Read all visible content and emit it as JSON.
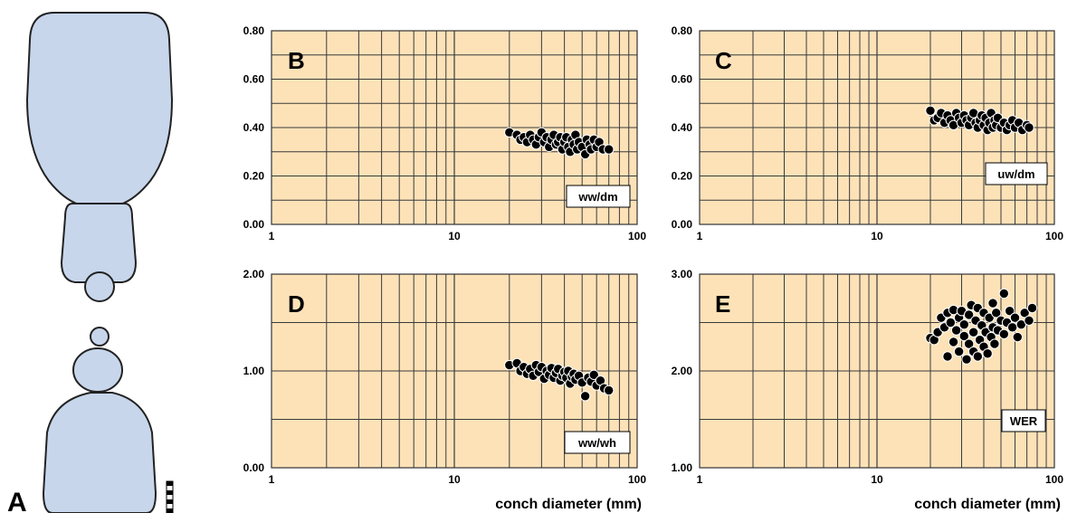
{
  "figure": {
    "panel_a_letter": "A",
    "colors": {
      "plot_background": "#fde2b8",
      "grid": "#3a3a3a",
      "marker_fill": "#000000",
      "marker_edge": "#ffffff",
      "cross_section_fill": "#c8d6ec",
      "cross_section_stroke": "#222222"
    }
  },
  "chart_data": [
    {
      "panel": "B",
      "type": "scatter",
      "x_scale": "log",
      "xlim": [
        1,
        100
      ],
      "ylim": [
        0,
        0.8
      ],
      "x_ticks": [
        "1",
        "10",
        "100"
      ],
      "y_ticks": [
        "0.00",
        "0.20",
        "0.40",
        "0.60",
        "0.80"
      ],
      "xlabel": "",
      "series_label": "ww/dm",
      "points": [
        [
          20,
          0.38
        ],
        [
          22,
          0.37
        ],
        [
          23,
          0.35
        ],
        [
          24,
          0.36
        ],
        [
          25,
          0.34
        ],
        [
          26,
          0.37
        ],
        [
          27,
          0.35
        ],
        [
          28,
          0.33
        ],
        [
          29,
          0.36
        ],
        [
          30,
          0.38
        ],
        [
          31,
          0.34
        ],
        [
          32,
          0.36
        ],
        [
          33,
          0.32
        ],
        [
          34,
          0.35
        ],
        [
          35,
          0.37
        ],
        [
          36,
          0.33
        ],
        [
          37,
          0.34
        ],
        [
          38,
          0.36
        ],
        [
          39,
          0.31
        ],
        [
          40,
          0.34
        ],
        [
          41,
          0.36
        ],
        [
          42,
          0.32
        ],
        [
          43,
          0.3
        ],
        [
          44,
          0.35
        ],
        [
          45,
          0.33
        ],
        [
          46,
          0.37
        ],
        [
          47,
          0.31
        ],
        [
          48,
          0.34
        ],
        [
          50,
          0.32
        ],
        [
          52,
          0.29
        ],
        [
          53,
          0.35
        ],
        [
          55,
          0.33
        ],
        [
          56,
          0.31
        ],
        [
          58,
          0.35
        ],
        [
          60,
          0.32
        ],
        [
          62,
          0.34
        ],
        [
          65,
          0.31
        ],
        [
          70,
          0.31
        ]
      ]
    },
    {
      "panel": "C",
      "type": "scatter",
      "x_scale": "log",
      "xlim": [
        1,
        100
      ],
      "ylim": [
        0,
        0.8
      ],
      "x_ticks": [
        "1",
        "10",
        "100"
      ],
      "y_ticks": [
        "0.00",
        "0.20",
        "0.40",
        "0.60",
        "0.80"
      ],
      "xlabel": "",
      "series_label": "uw/dm",
      "points": [
        [
          20,
          0.47
        ],
        [
          21,
          0.43
        ],
        [
          22,
          0.44
        ],
        [
          23,
          0.46
        ],
        [
          24,
          0.42
        ],
        [
          25,
          0.45
        ],
        [
          26,
          0.43
        ],
        [
          27,
          0.41
        ],
        [
          28,
          0.46
        ],
        [
          29,
          0.44
        ],
        [
          30,
          0.42
        ],
        [
          31,
          0.45
        ],
        [
          32,
          0.43
        ],
        [
          33,
          0.41
        ],
        [
          34,
          0.44
        ],
        [
          35,
          0.46
        ],
        [
          36,
          0.42
        ],
        [
          37,
          0.4
        ],
        [
          38,
          0.43
        ],
        [
          39,
          0.45
        ],
        [
          40,
          0.41
        ],
        [
          41,
          0.44
        ],
        [
          42,
          0.39
        ],
        [
          43,
          0.42
        ],
        [
          44,
          0.46
        ],
        [
          45,
          0.4
        ],
        [
          46,
          0.43
        ],
        [
          47,
          0.41
        ],
        [
          48,
          0.44
        ],
        [
          50,
          0.4
        ],
        [
          52,
          0.42
        ],
        [
          54,
          0.39
        ],
        [
          56,
          0.41
        ],
        [
          58,
          0.43
        ],
        [
          60,
          0.4
        ],
        [
          63,
          0.42
        ],
        [
          66,
          0.39
        ],
        [
          70,
          0.41
        ],
        [
          72,
          0.4
        ]
      ]
    },
    {
      "panel": "D",
      "type": "scatter",
      "x_scale": "log",
      "xlim": [
        1,
        100
      ],
      "ylim": [
        0,
        2
      ],
      "x_ticks": [
        "1",
        "10",
        "100"
      ],
      "y_ticks": [
        "0.00",
        "1.00",
        "2.00"
      ],
      "xlabel": "conch diameter (mm)",
      "series_label": "ww/wh",
      "points": [
        [
          20,
          1.06
        ],
        [
          22,
          1.08
        ],
        [
          23,
          1.0
        ],
        [
          24,
          1.04
        ],
        [
          25,
          0.97
        ],
        [
          26,
          1.02
        ],
        [
          27,
          0.95
        ],
        [
          28,
          1.06
        ],
        [
          29,
          0.99
        ],
        [
          30,
          1.04
        ],
        [
          31,
          0.92
        ],
        [
          32,
          1.0
        ],
        [
          33,
          0.96
        ],
        [
          34,
          1.03
        ],
        [
          35,
          0.93
        ],
        [
          36,
          0.98
        ],
        [
          37,
          1.02
        ],
        [
          38,
          0.9
        ],
        [
          39,
          0.95
        ],
        [
          40,
          0.99
        ],
        [
          41,
          0.93
        ],
        [
          42,
          1.0
        ],
        [
          43,
          0.87
        ],
        [
          44,
          0.94
        ],
        [
          45,
          0.97
        ],
        [
          46,
          0.91
        ],
        [
          48,
          0.95
        ],
        [
          50,
          0.88
        ],
        [
          52,
          0.74
        ],
        [
          54,
          0.93
        ],
        [
          56,
          0.89
        ],
        [
          58,
          0.96
        ],
        [
          60,
          0.85
        ],
        [
          63,
          0.9
        ],
        [
          66,
          0.82
        ],
        [
          70,
          0.8
        ]
      ]
    },
    {
      "panel": "E",
      "type": "scatter",
      "x_scale": "log",
      "xlim": [
        1,
        100
      ],
      "ylim": [
        1,
        3
      ],
      "x_ticks": [
        "1",
        "10",
        "100"
      ],
      "y_ticks": [
        "1.00",
        "2.00",
        "3.00"
      ],
      "xlabel": "conch diameter (mm)",
      "series_label": "WER",
      "points": [
        [
          20,
          2.34
        ],
        [
          21,
          2.32
        ],
        [
          22,
          2.4
        ],
        [
          23,
          2.55
        ],
        [
          24,
          2.45
        ],
        [
          25,
          2.6
        ],
        [
          25,
          2.15
        ],
        [
          26,
          2.5
        ],
        [
          27,
          2.63
        ],
        [
          27,
          2.3
        ],
        [
          28,
          2.42
        ],
        [
          29,
          2.55
        ],
        [
          29,
          2.2
        ],
        [
          30,
          2.62
        ],
        [
          31,
          2.36
        ],
        [
          31,
          2.48
        ],
        [
          32,
          2.12
        ],
        [
          33,
          2.58
        ],
        [
          33,
          2.28
        ],
        [
          34,
          2.68
        ],
        [
          35,
          2.4
        ],
        [
          35,
          2.2
        ],
        [
          36,
          2.52
        ],
        [
          37,
          2.65
        ],
        [
          37,
          2.15
        ],
        [
          38,
          2.32
        ],
        [
          39,
          2.47
        ],
        [
          40,
          2.6
        ],
        [
          40,
          2.25
        ],
        [
          41,
          2.4
        ],
        [
          42,
          2.18
        ],
        [
          43,
          2.55
        ],
        [
          44,
          2.35
        ],
        [
          45,
          2.7
        ],
        [
          45,
          2.45
        ],
        [
          46,
          2.28
        ],
        [
          47,
          2.6
        ],
        [
          48,
          2.42
        ],
        [
          50,
          2.52
        ],
        [
          52,
          2.8
        ],
        [
          52,
          2.38
        ],
        [
          54,
          2.5
        ],
        [
          56,
          2.62
        ],
        [
          58,
          2.45
        ],
        [
          60,
          2.55
        ],
        [
          62,
          2.35
        ],
        [
          65,
          2.48
        ],
        [
          68,
          2.6
        ],
        [
          72,
          2.52
        ],
        [
          75,
          2.65
        ]
      ]
    }
  ]
}
